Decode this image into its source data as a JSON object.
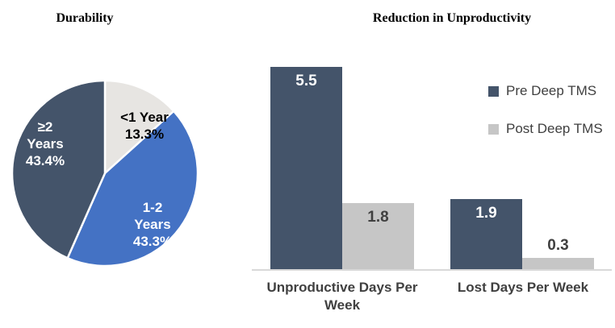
{
  "page": {
    "background": "#FFFFFF"
  },
  "chart_data": [
    {
      "type": "pie",
      "title": "Durability",
      "start_angle_deg": -90,
      "direction": "clockwise",
      "grid": false,
      "legend_position": "none",
      "slices": [
        {
          "label": "<1 Year",
          "value": 13.3,
          "pct_label": "13.3%",
          "color": "#E7E5E2",
          "text_color": "#000000"
        },
        {
          "label": "1-2 Years",
          "value": 43.3,
          "pct_label": "43.3%",
          "color": "#4472C4",
          "text_color": "#FFFFFF"
        },
        {
          "label": "≥2 Years",
          "value": 43.4,
          "pct_label": "43.4%",
          "color": "#44546A",
          "text_color": "#FFFFFF"
        }
      ]
    },
    {
      "type": "bar",
      "title": "Reduction in Unproductivity",
      "categories": [
        "Unproductive Days Per Week",
        "Lost Days Per Week"
      ],
      "series": [
        {
          "name": "Pre Deep TMS",
          "color": "#44546A",
          "label_color": "#FFFFFF",
          "values": [
            5.5,
            1.9
          ]
        },
        {
          "name": "Post Deep TMS",
          "color": "#C6C6C6",
          "label_color": "#404040",
          "values": [
            1.8,
            0.3
          ]
        }
      ],
      "ylim": [
        0,
        6
      ],
      "grid": false,
      "legend_position": "right",
      "axis_line_color": "#D9D9D9",
      "category_label_color": "#404040",
      "value_label_color_short_bar": "#404040"
    }
  ]
}
